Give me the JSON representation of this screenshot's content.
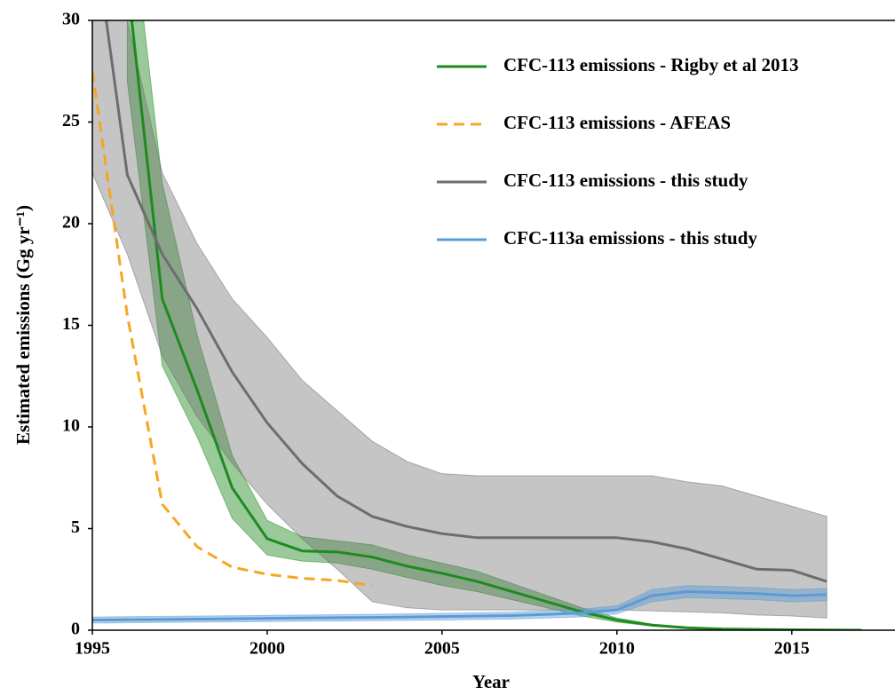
{
  "chart_data": {
    "type": "line",
    "x_label": "Year",
    "y_label": "Estimated emissions (Gg yr⁻¹)",
    "xlim": [
      1995,
      2017.9
    ],
    "ylim": [
      0,
      30
    ],
    "xticks": [
      1995,
      2000,
      2005,
      2010,
      2015
    ],
    "yticks": [
      0,
      5,
      10,
      15,
      20,
      25,
      30
    ],
    "legend": "upper right",
    "series": [
      {
        "name": "CFC-113 emissions - Rigby et al 2013",
        "color": "#1f8a1f",
        "dashed": false,
        "x": [
          1996,
          1997,
          1998,
          1999,
          2000,
          2001,
          2002,
          2003,
          2004,
          2005,
          2006,
          2007,
          2008,
          2009,
          2010,
          2011,
          2012,
          2013,
          2014,
          2015,
          2016,
          2017
        ],
        "values": [
          32,
          16.3,
          11.8,
          7.0,
          4.5,
          3.9,
          3.85,
          3.6,
          3.15,
          2.8,
          2.4,
          1.9,
          1.4,
          0.9,
          0.5,
          0.25,
          0.12,
          0.06,
          0.04,
          0.02,
          0.01,
          0.0
        ],
        "lower": [
          27,
          13,
          9.5,
          5.5,
          3.7,
          3.4,
          3.3,
          3.0,
          2.6,
          2.2,
          1.9,
          1.5,
          1.1,
          0.7,
          0.4,
          0.2,
          0.08,
          0.04,
          0.02,
          0.01,
          0.0,
          0.0
        ],
        "upper": [
          37,
          22,
          14.5,
          8.6,
          5.4,
          4.6,
          4.4,
          4.2,
          3.7,
          3.3,
          2.9,
          2.3,
          1.7,
          1.1,
          0.6,
          0.3,
          0.16,
          0.08,
          0.06,
          0.03,
          0.02,
          0.01
        ]
      },
      {
        "name": "CFC-113 emissions - AFEAS",
        "color": "#f5a623",
        "dashed": true,
        "x": [
          1995,
          1996,
          1997,
          1998,
          1999,
          2000,
          2001,
          2002,
          2003
        ],
        "values": [
          27.5,
          15.5,
          6.2,
          4.1,
          3.1,
          2.75,
          2.55,
          2.45,
          2.2
        ]
      },
      {
        "name": "CFC-113 emissions - this study",
        "color": "#6d6d6d",
        "dashed": false,
        "x": [
          1995,
          1996,
          1997,
          1998,
          1999,
          2000,
          2001,
          2002,
          2003,
          2004,
          2005,
          2006,
          2007,
          2008,
          2009,
          2010,
          2011,
          2012,
          2013,
          2014,
          2015,
          2016
        ],
        "values": [
          35,
          22.4,
          18.5,
          15.8,
          12.7,
          10.2,
          8.2,
          6.6,
          5.6,
          5.1,
          4.75,
          4.55,
          4.55,
          4.55,
          4.55,
          4.55,
          4.35,
          4.0,
          3.5,
          3.0,
          2.95,
          2.4
        ],
        "lower": [
          22.5,
          18.5,
          13.5,
          10.5,
          8.2,
          6.2,
          4.5,
          3.0,
          1.4,
          1.1,
          1.0,
          1.0,
          1.0,
          1.0,
          1.0,
          1.0,
          0.95,
          0.9,
          0.85,
          0.75,
          0.7,
          0.6
        ],
        "upper": [
          34,
          30,
          22.5,
          19,
          16.3,
          14.4,
          12.3,
          10.8,
          9.3,
          8.3,
          7.7,
          7.6,
          7.6,
          7.6,
          7.6,
          7.6,
          7.6,
          7.3,
          7.1,
          6.6,
          6.1,
          5.6
        ]
      },
      {
        "name": "CFC-113a emissions - this study",
        "color": "#5b9bd5",
        "dashed": false,
        "x": [
          1995,
          1997,
          1999,
          2001,
          2003,
          2005,
          2007,
          2008,
          2009,
          2010,
          2011,
          2012,
          2013,
          2014,
          2015,
          2016
        ],
        "values": [
          0.5,
          0.53,
          0.56,
          0.6,
          0.63,
          0.67,
          0.72,
          0.78,
          0.85,
          1.0,
          1.7,
          1.9,
          1.85,
          1.8,
          1.7,
          1.75
        ],
        "lower": [
          0.35,
          0.38,
          0.41,
          0.44,
          0.47,
          0.5,
          0.55,
          0.6,
          0.66,
          0.8,
          1.4,
          1.6,
          1.55,
          1.5,
          1.4,
          1.45
        ],
        "upper": [
          0.65,
          0.68,
          0.71,
          0.75,
          0.78,
          0.83,
          0.89,
          0.96,
          1.04,
          1.2,
          2.0,
          2.2,
          2.15,
          2.1,
          2.0,
          2.05
        ]
      }
    ]
  }
}
